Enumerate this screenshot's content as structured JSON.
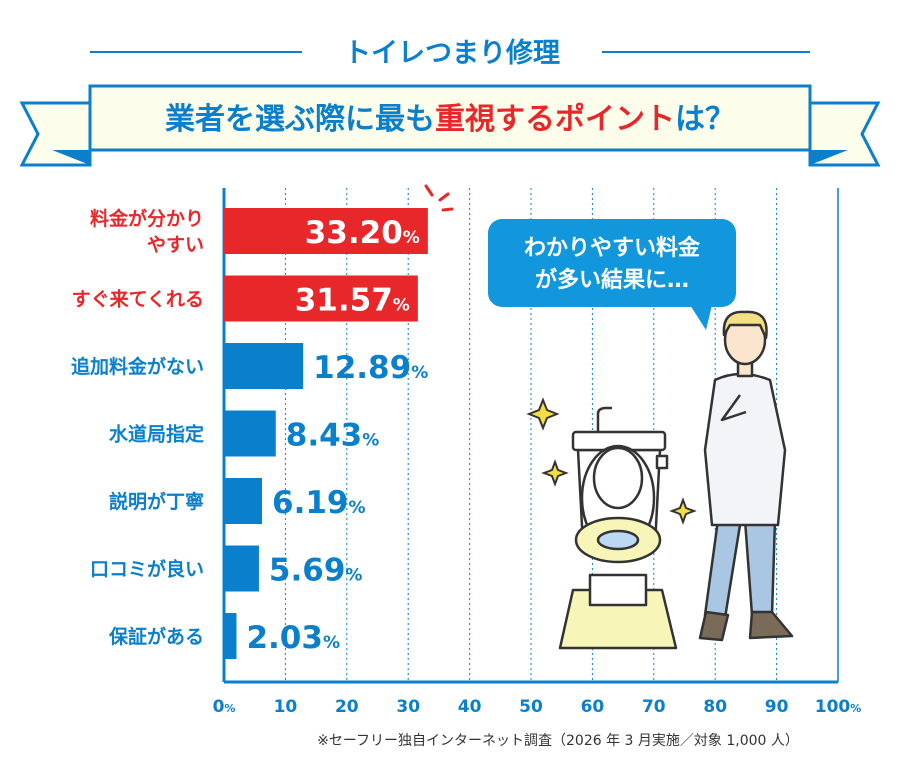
{
  "header": {
    "subtitle": "トイレつまり修理",
    "title_part1": "業者を選ぶ際に最も",
    "title_part2": "重視するポイント",
    "title_part3": "は？"
  },
  "speech_bubble": {
    "line1": "わかりやすい料金",
    "line2": "が多い結果に…"
  },
  "footnote": "※セーフリー独自インターネット調査（2026 年 3 月実施／対象 1,000 人）",
  "colors": {
    "blue": "#0a7fcb",
    "red": "#e8272a",
    "banner_fill": "#fdfdec"
  },
  "chart_data": {
    "type": "bar",
    "orientation": "horizontal",
    "title": "業者を選ぶ際に最も重視するポイントは？",
    "categories": [
      "料金が分かりやすい",
      "すぐ来てくれる",
      "追加料金がない",
      "水道局指定",
      "説明が丁寧",
      "口コミが良い",
      "保証がある"
    ],
    "category_lines": [
      [
        "料金が分かり",
        "やすい"
      ],
      [
        "すぐ来てくれる"
      ],
      [
        "追加料金がない"
      ],
      [
        "水道局指定"
      ],
      [
        "説明が丁寧"
      ],
      [
        "口コミが良い"
      ],
      [
        "保証がある"
      ]
    ],
    "values": [
      33.2,
      31.57,
      12.89,
      8.43,
      6.19,
      5.69,
      2.03
    ],
    "value_labels": [
      "33.20",
      "31.57",
      "12.89",
      "8.43",
      "6.19",
      "5.69",
      "2.03"
    ],
    "value_unit": "%",
    "highlight": [
      true,
      true,
      false,
      false,
      false,
      false,
      false
    ],
    "xlim": [
      0,
      100
    ],
    "xticks": [
      "0",
      "10",
      "20",
      "30",
      "40",
      "50",
      "60",
      "70",
      "80",
      "90",
      "100"
    ],
    "xtick_unit": "%",
    "grid": true
  }
}
